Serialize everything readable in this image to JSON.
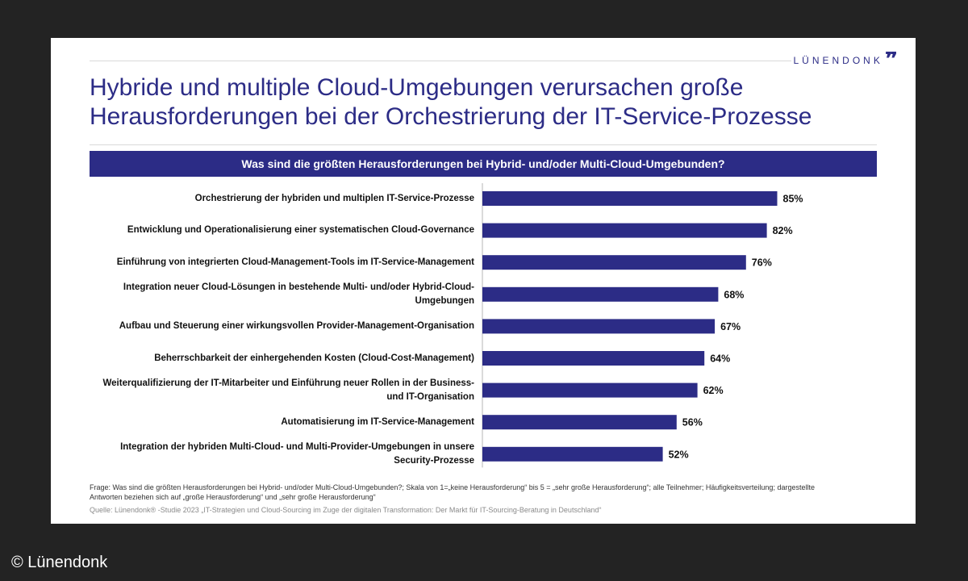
{
  "logo": {
    "text": "LÜNENDONK",
    "mark": "❞"
  },
  "headline": {
    "line1": "Hybride und multiple Cloud-Umgebungen verursachen große",
    "line2": "Herausforderungen bei der Orchestrierung der IT-Service-Prozesse"
  },
  "question": "Was sind die größten Herausforderungen bei Hybrid- und/oder Multi-Cloud-Umgebunden?",
  "chart_data": {
    "type": "bar",
    "orientation": "horizontal",
    "title": "Was sind die größten Herausforderungen bei Hybrid- und/oder Multi-Cloud-Umgebunden?",
    "xlabel": "",
    "ylabel": "",
    "xlim": [
      0,
      100
    ],
    "grid": false,
    "bar_color": "#2c2c86",
    "categories": [
      [
        "Orchestrierung der hybriden und multiplen IT-Service-Prozesse"
      ],
      [
        "Entwicklung und Operationalisierung einer systematischen Cloud-Governance"
      ],
      [
        "Einführung von integrierten Cloud-Management-Tools im IT-Service-Management"
      ],
      [
        "Integration neuer Cloud-Lösungen in bestehende Multi- und/oder Hybrid-Cloud-",
        "Umgebungen"
      ],
      [
        "Aufbau und Steuerung einer wirkungsvollen Provider-Management-Organisation"
      ],
      [
        "Beherrschbarkeit der einhergehenden Kosten (Cloud-Cost-Management)"
      ],
      [
        "Weiterqualifizierung der IT-Mitarbeiter und Einführung neuer Rollen in der Business-",
        "und IT-Organisation"
      ],
      [
        "Automatisierung im IT-Service-Management"
      ],
      [
        "Integration der hybriden Multi-Cloud- und Multi-Provider-Umgebungen in unsere",
        "Security-Prozesse"
      ]
    ],
    "values": [
      85,
      82,
      76,
      68,
      67,
      64,
      62,
      56,
      52
    ],
    "value_labels": [
      "85%",
      "82%",
      "76%",
      "68%",
      "67%",
      "64%",
      "62%",
      "56%",
      "52%"
    ]
  },
  "footnote": {
    "line1": "Frage: Was sind die größten Herausforderungen bei Hybrid- und/oder Multi-Cloud-Umgebunden?; Skala von 1=„keine Herausforderung“ bis 5 = „sehr große Herausforderung“; alle Teilnehmer; Häufigkeitsverteilung; dargestellte",
    "line2": "Antworten beziehen sich auf „große Herausforderung“ und „sehr große Herausforderung“"
  },
  "source": "Quelle: Lünendonk® -Studie 2023 „IT-Strategien und Cloud-Sourcing im Zuge der digitalen Transformation: Der Markt für IT-Sourcing-Beratung in Deutschland“",
  "copyright": "© Lünendonk"
}
